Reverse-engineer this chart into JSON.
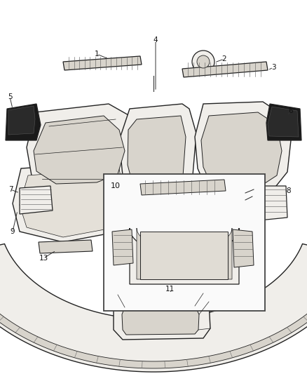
{
  "bg_color": "#ffffff",
  "line_color": "#222222",
  "fill_light": "#f0eeea",
  "fill_mid": "#d8d4cc",
  "fill_dark": "#a8a49c",
  "fill_black": "#1a1a1a",
  "figsize": [
    4.38,
    5.33
  ],
  "dpi": 100
}
